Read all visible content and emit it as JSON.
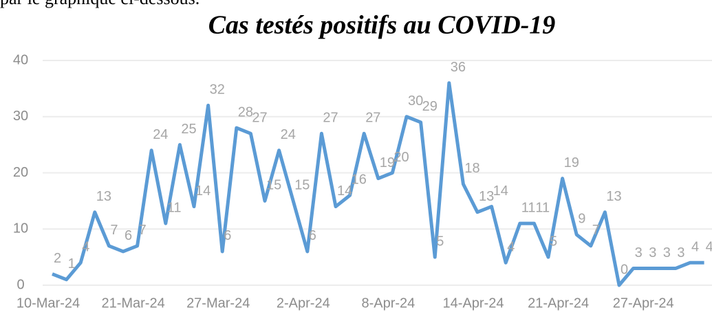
{
  "intro_text": "par le graphique ci-dessous.",
  "chart_data": {
    "type": "line",
    "title": "Cas testés positifs au COVID-19",
    "categories": [
      "10-Mar-24",
      null,
      null,
      null,
      null,
      null,
      "21-Mar-24",
      null,
      null,
      null,
      null,
      null,
      "27-Mar-24",
      null,
      null,
      null,
      null,
      null,
      "2-Apr-24",
      null,
      null,
      null,
      null,
      null,
      "8-Apr-24",
      null,
      null,
      null,
      null,
      null,
      "14-Apr-24",
      null,
      null,
      null,
      null,
      null,
      "21-Apr-24",
      null,
      null,
      null,
      null,
      null,
      "27-Apr-24",
      null,
      null,
      null,
      null
    ],
    "series": [
      {
        "name": "Cas",
        "color": "#5b9bd5",
        "values": [
          2,
          1,
          4,
          13,
          7,
          6,
          7,
          24,
          11,
          25,
          14,
          32,
          6,
          28,
          27,
          15,
          24,
          15,
          6,
          27,
          14,
          16,
          27,
          19,
          20,
          30,
          29,
          5,
          36,
          18,
          13,
          14,
          4,
          11,
          11,
          5,
          19,
          9,
          7,
          13,
          0,
          3,
          3,
          3,
          3,
          4,
          4
        ]
      }
    ],
    "ylim": [
      0,
      40
    ],
    "yticks": [
      0,
      10,
      20,
      30,
      40
    ],
    "grid": true,
    "data_labels": true
  }
}
